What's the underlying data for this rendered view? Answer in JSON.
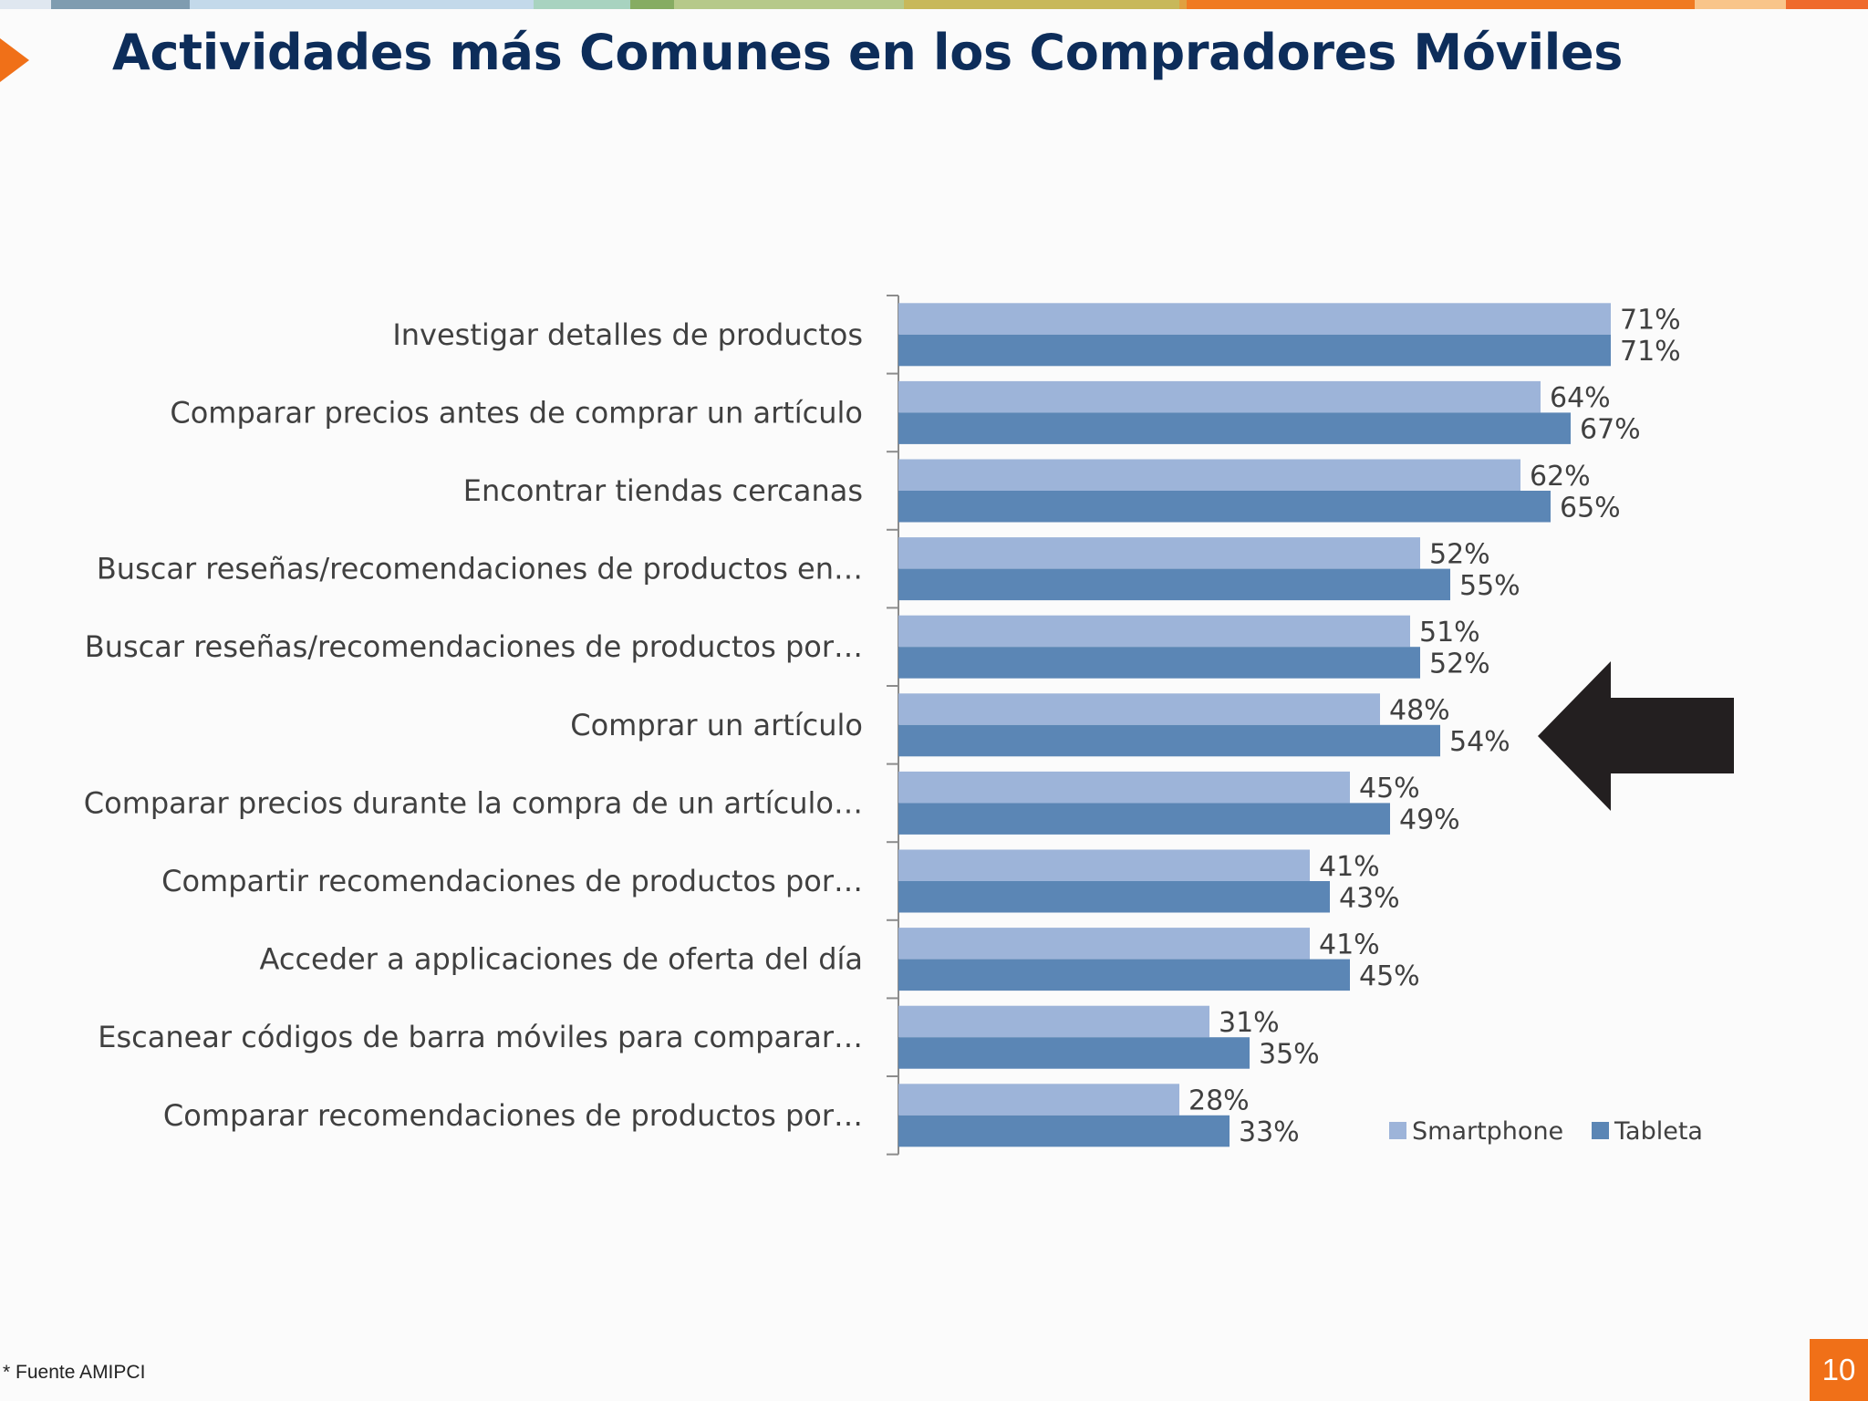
{
  "slide": {
    "title": "Actividades más Comunes en los Compradores Móviles",
    "source_note": "* Fuente AMIPCI",
    "page_number": "10"
  },
  "colors": {
    "smartphone": "#9db4d9",
    "tableta": "#5b86b5",
    "title": "#0d2d5a",
    "accent": "#f07018",
    "big_arrow": "#231f20",
    "stripe": [
      "#dfe7f0",
      "#7f9cb0",
      "#c3d9ea",
      "#a8d3c0",
      "#86ac62",
      "#b6c98a",
      "#c8b85a",
      "#e0a040",
      "#f07a22",
      "#f9c58a",
      "#ef6a2c"
    ]
  },
  "chart_data": {
    "type": "bar",
    "orientation": "horizontal",
    "categories": [
      "Investigar detalles de productos",
      "Comparar precios antes de comprar un artículo",
      "Encontrar tiendas cercanas",
      "Buscar reseñas/recomendaciones de productos en…",
      "Buscar reseñas/recomendaciones de productos por…",
      "Comprar un artículo",
      "Comparar precios durante la compra de un artículo…",
      "Compartir recomendaciones de productos por…",
      "Acceder a applicaciones de oferta del día",
      "Escanear códigos de barra móviles para comparar…",
      "Comparar recomendaciones de productos por…"
    ],
    "series": [
      {
        "name": "Smartphone",
        "values": [
          71,
          64,
          62,
          52,
          51,
          48,
          45,
          41,
          41,
          31,
          28
        ],
        "labels": [
          "71%",
          "64%",
          "62%",
          "52%",
          "51%",
          "48%",
          "45%",
          "41%",
          "41%",
          "31%",
          "28%"
        ]
      },
      {
        "name": "Tableta",
        "values": [
          71,
          67,
          65,
          55,
          52,
          54,
          49,
          43,
          45,
          35,
          33
        ],
        "labels": [
          "71%",
          "67%",
          "65%",
          "55%",
          "52%",
          "54%",
          "49%",
          "43%",
          "45%",
          "35%",
          "33%"
        ]
      }
    ],
    "xlim": [
      0,
      80
    ],
    "grid": false,
    "legend_position": "bottom-right",
    "highlighted_category": "Comprar un artículo"
  }
}
